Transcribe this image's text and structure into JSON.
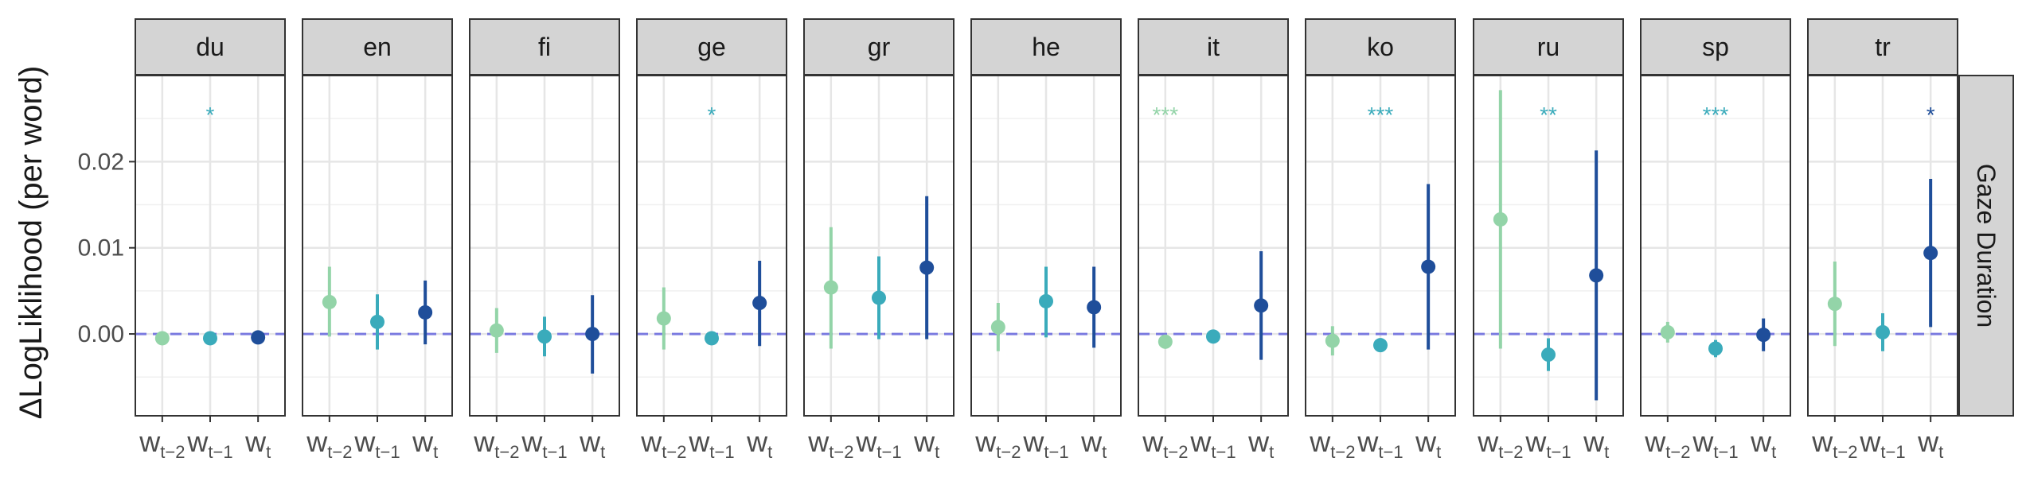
{
  "chart_data": {
    "type": "scatter",
    "subtype": "point-range (faceted)",
    "ylabel": "ΔLogLiklihood (per word)",
    "row_facet": "Gaze Duration",
    "yticks": [
      0.0,
      0.01,
      0.02
    ],
    "ytick_labels": [
      "0.00",
      "0.01",
      "0.02"
    ],
    "ylim": [
      -0.0095,
      0.03
    ],
    "reference_line": {
      "y": 0,
      "style": "dashed",
      "color": "#7b7be0"
    },
    "x_categories": [
      {
        "base": "w",
        "sub": "t−2"
      },
      {
        "base": "w",
        "sub": "t−1"
      },
      {
        "base": "w",
        "sub": "t"
      }
    ],
    "colors": [
      "#93d4a8",
      "#3aabbb",
      "#1f4e9a"
    ],
    "facets": [
      {
        "name": "du",
        "points": [
          {
            "y": -0.0005,
            "lo": -0.0008,
            "hi": -0.0002
          },
          {
            "y": -0.0005,
            "lo": -0.0008,
            "hi": -0.0002
          },
          {
            "y": -0.0004,
            "lo": -0.0007,
            "hi": -0.0002
          }
        ],
        "sig": [
          null,
          "*",
          null
        ]
      },
      {
        "name": "en",
        "points": [
          {
            "y": 0.0037,
            "lo": -0.0003,
            "hi": 0.0078
          },
          {
            "y": 0.0014,
            "lo": -0.0018,
            "hi": 0.0046
          },
          {
            "y": 0.0025,
            "lo": -0.0012,
            "hi": 0.0062
          }
        ],
        "sig": [
          null,
          null,
          null
        ]
      },
      {
        "name": "fi",
        "points": [
          {
            "y": 0.0004,
            "lo": -0.0022,
            "hi": 0.003
          },
          {
            "y": -0.0003,
            "lo": -0.0026,
            "hi": 0.002
          },
          {
            "y": 0.0,
            "lo": -0.0046,
            "hi": 0.0045
          }
        ],
        "sig": [
          null,
          null,
          null
        ]
      },
      {
        "name": "ge",
        "points": [
          {
            "y": 0.0018,
            "lo": -0.0018,
            "hi": 0.0054
          },
          {
            "y": -0.0005,
            "lo": -0.0008,
            "hi": -0.0002
          },
          {
            "y": 0.0036,
            "lo": -0.0014,
            "hi": 0.0085
          }
        ],
        "sig": [
          null,
          "*",
          null
        ]
      },
      {
        "name": "gr",
        "points": [
          {
            "y": 0.0054,
            "lo": -0.0017,
            "hi": 0.0124
          },
          {
            "y": 0.0042,
            "lo": -0.0006,
            "hi": 0.009
          },
          {
            "y": 0.0077,
            "lo": -0.0006,
            "hi": 0.016
          }
        ],
        "sig": [
          null,
          null,
          null
        ]
      },
      {
        "name": "he",
        "points": [
          {
            "y": 0.0008,
            "lo": -0.002,
            "hi": 0.0036
          },
          {
            "y": 0.0038,
            "lo": -0.0004,
            "hi": 0.0078
          },
          {
            "y": 0.0031,
            "lo": -0.0016,
            "hi": 0.0078
          }
        ],
        "sig": [
          null,
          null,
          null
        ]
      },
      {
        "name": "it",
        "points": [
          {
            "y": -0.0009,
            "lo": -0.0013,
            "hi": -0.0005
          },
          {
            "y": -0.0003,
            "lo": -0.0006,
            "hi": -0.0001
          },
          {
            "y": 0.0033,
            "lo": -0.003,
            "hi": 0.0096
          }
        ],
        "sig": [
          "***",
          null,
          null
        ]
      },
      {
        "name": "ko",
        "points": [
          {
            "y": -0.0008,
            "lo": -0.0025,
            "hi": 0.0009
          },
          {
            "y": -0.0013,
            "lo": -0.0018,
            "hi": -0.0008
          },
          {
            "y": 0.0078,
            "lo": -0.0018,
            "hi": 0.0174
          }
        ],
        "sig": [
          null,
          "***",
          null
        ]
      },
      {
        "name": "ru",
        "points": [
          {
            "y": 0.0133,
            "lo": -0.0017,
            "hi": 0.0283
          },
          {
            "y": -0.0024,
            "lo": -0.0043,
            "hi": -0.0005
          },
          {
            "y": 0.0068,
            "lo": -0.0077,
            "hi": 0.0213
          }
        ],
        "sig": [
          null,
          "**",
          null
        ]
      },
      {
        "name": "sp",
        "points": [
          {
            "y": 0.0002,
            "lo": -0.001,
            "hi": 0.0014
          },
          {
            "y": -0.0017,
            "lo": -0.0027,
            "hi": -0.0007
          },
          {
            "y": -0.0001,
            "lo": -0.002,
            "hi": 0.0018
          }
        ],
        "sig": [
          null,
          "***",
          null
        ]
      },
      {
        "name": "tr",
        "points": [
          {
            "y": 0.0035,
            "lo": -0.0014,
            "hi": 0.0084
          },
          {
            "y": 0.0002,
            "lo": -0.002,
            "hi": 0.0024
          },
          {
            "y": 0.0094,
            "lo": 0.0008,
            "hi": 0.018
          }
        ],
        "sig": [
          null,
          null,
          "*"
        ]
      }
    ]
  }
}
